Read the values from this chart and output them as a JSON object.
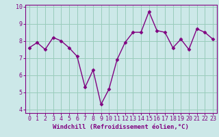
{
  "x": [
    0,
    1,
    2,
    3,
    4,
    5,
    6,
    7,
    8,
    9,
    10,
    11,
    12,
    13,
    14,
    15,
    16,
    17,
    18,
    19,
    20,
    21,
    22,
    23
  ],
  "y": [
    7.6,
    7.9,
    7.5,
    8.2,
    8.0,
    7.6,
    7.1,
    5.3,
    6.3,
    4.3,
    5.2,
    6.9,
    7.9,
    8.5,
    8.5,
    9.7,
    8.6,
    8.5,
    7.6,
    8.1,
    7.5,
    8.7,
    8.5,
    8.1
  ],
  "line_color": "#800080",
  "marker": "D",
  "marker_size": 2.5,
  "line_width": 1.0,
  "bg_color": "#cce8e8",
  "grid_color": "#99ccbb",
  "xlabel": "Windchill (Refroidissement éolien,°C)",
  "xlabel_color": "#800080",
  "tick_color": "#800080",
  "spine_color": "#800080",
  "ylim": [
    3.8,
    10.1
  ],
  "xlim": [
    -0.5,
    23.5
  ],
  "yticks": [
    4,
    5,
    6,
    7,
    8,
    9,
    10
  ],
  "xticks": [
    0,
    1,
    2,
    3,
    4,
    5,
    6,
    7,
    8,
    9,
    10,
    11,
    12,
    13,
    14,
    15,
    16,
    17,
    18,
    19,
    20,
    21,
    22,
    23
  ],
  "font_size_xlabel": 6.5,
  "font_size_tick": 6.0
}
